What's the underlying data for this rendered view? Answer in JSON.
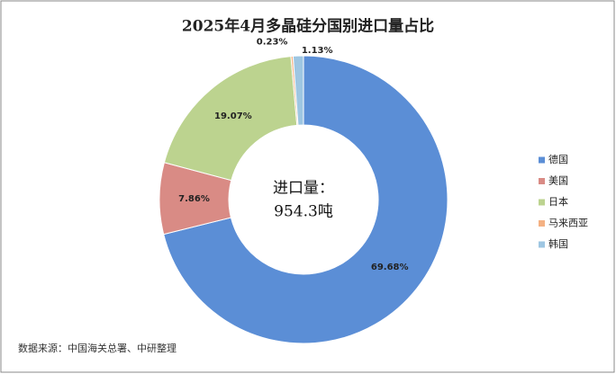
{
  "chart_data": {
    "type": "donut",
    "title": "2025年4月多晶硅分国别进口量占比",
    "categories": [
      "德国",
      "美国",
      "日本",
      "马来西亚",
      "韩国"
    ],
    "values": [
      69.68,
      7.86,
      19.07,
      0.23,
      1.13
    ],
    "value_labels": [
      "69.68%",
      "7.86%",
      "19.07%",
      "0.23%",
      "1.13%"
    ],
    "colors": [
      "#5b8ed6",
      "#d98b85",
      "#bcd38f",
      "#f4b183",
      "#9ec6e2"
    ],
    "center_text": [
      "进口量：",
      "954.3吨"
    ],
    "legend": "right",
    "source": "数据来源：中国海关总署、中研整理"
  }
}
